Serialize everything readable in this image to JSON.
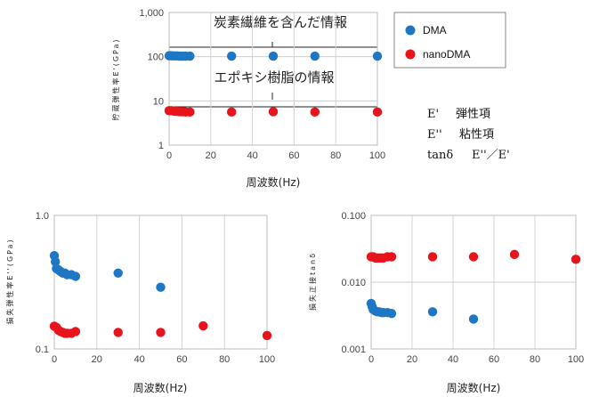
{
  "chart_data": [
    {
      "type": "scatter",
      "yscale": "log",
      "xlim": [
        0,
        100
      ],
      "ylim": [
        1,
        1000
      ],
      "xticks": [
        "0",
        "20",
        "40",
        "60",
        "80",
        "100"
      ],
      "yticks": [
        "1",
        "10",
        "100",
        "1,000"
      ],
      "xlabel": "周波数(Hz)",
      "ylabel": "貯蔵弾性率E'(GPa)",
      "grid": true,
      "annotations": [
        "炭素繊維を含んだ情報",
        "エポキシ樹脂の情報"
      ],
      "series": [
        {
          "name": "DMA",
          "color": "#1f77c4",
          "x": [
            0,
            1,
            2,
            3,
            4,
            5,
            6,
            7,
            8,
            10,
            30,
            50,
            70,
            100
          ],
          "y": [
            105,
            105,
            104,
            104,
            104,
            103,
            103,
            103,
            103,
            103,
            103,
            103,
            103,
            103
          ]
        },
        {
          "name": "nanoDMA",
          "color": "#e8141c",
          "x": [
            0,
            1,
            2,
            3,
            4,
            5,
            6,
            7,
            8,
            10,
            30,
            50,
            70,
            100
          ],
          "y": [
            6.0,
            6.0,
            5.9,
            5.8,
            5.8,
            5.7,
            5.7,
            5.7,
            5.6,
            5.6,
            5.6,
            5.7,
            5.6,
            5.6
          ]
        }
      ]
    },
    {
      "type": "scatter",
      "yscale": "log",
      "xlim": [
        0,
        100
      ],
      "ylim": [
        0.1,
        1.0
      ],
      "xticks": [
        "0",
        "20",
        "40",
        "60",
        "80",
        "100"
      ],
      "yticks": [
        "0.1",
        "1.0"
      ],
      "xlabel": "周波数(Hz)",
      "ylabel": "損失弾性率E''(GPa)",
      "grid": true,
      "series": [
        {
          "name": "DMA",
          "color": "#1f77c4",
          "x": [
            0,
            0.5,
            1,
            2,
            3,
            4,
            5,
            6,
            8,
            10,
            30,
            50
          ],
          "y": [
            0.5,
            0.45,
            0.4,
            0.39,
            0.38,
            0.37,
            0.37,
            0.36,
            0.36,
            0.35,
            0.37,
            0.29
          ]
        },
        {
          "name": "nanoDMA",
          "color": "#e8141c",
          "x": [
            0,
            1,
            2,
            3,
            4,
            5,
            6,
            8,
            10,
            30,
            50,
            70,
            100
          ],
          "y": [
            0.148,
            0.145,
            0.138,
            0.135,
            0.133,
            0.131,
            0.131,
            0.131,
            0.135,
            0.133,
            0.133,
            0.149,
            0.126
          ]
        }
      ]
    },
    {
      "type": "scatter",
      "yscale": "log",
      "xlim": [
        0,
        100
      ],
      "ylim": [
        0.001,
        0.1
      ],
      "xticks": [
        "0",
        "20",
        "40",
        "60",
        "80",
        "100"
      ],
      "yticks": [
        "0.001",
        "0.010",
        "0.100"
      ],
      "xlabel": "周波数(Hz)",
      "ylabel": "損失正接tanδ",
      "grid": true,
      "series": [
        {
          "name": "DMA",
          "color": "#1f77c4",
          "x": [
            0,
            0.5,
            1,
            2,
            3,
            4,
            5,
            6,
            8,
            10,
            30,
            50
          ],
          "y": [
            0.0048,
            0.0043,
            0.0039,
            0.0037,
            0.0036,
            0.0036,
            0.0035,
            0.0035,
            0.0035,
            0.0034,
            0.0036,
            0.0028
          ]
        },
        {
          "name": "nanoDMA",
          "color": "#e8141c",
          "x": [
            0,
            1,
            2,
            3,
            4,
            5,
            6,
            8,
            10,
            30,
            50,
            70,
            100
          ],
          "y": [
            0.024,
            0.024,
            0.023,
            0.023,
            0.023,
            0.023,
            0.023,
            0.024,
            0.024,
            0.024,
            0.024,
            0.026,
            0.022
          ]
        }
      ]
    }
  ],
  "legend": {
    "items": [
      {
        "label": "DMA",
        "color": "#1f77c4"
      },
      {
        "label": "nanoDMA",
        "color": "#e8141c"
      }
    ]
  },
  "notes": [
    {
      "term": "E'",
      "desc": "弾性項"
    },
    {
      "term": "E''",
      "desc": "粘性項"
    },
    {
      "term": "tanδ",
      "desc": "E''／E'"
    }
  ]
}
